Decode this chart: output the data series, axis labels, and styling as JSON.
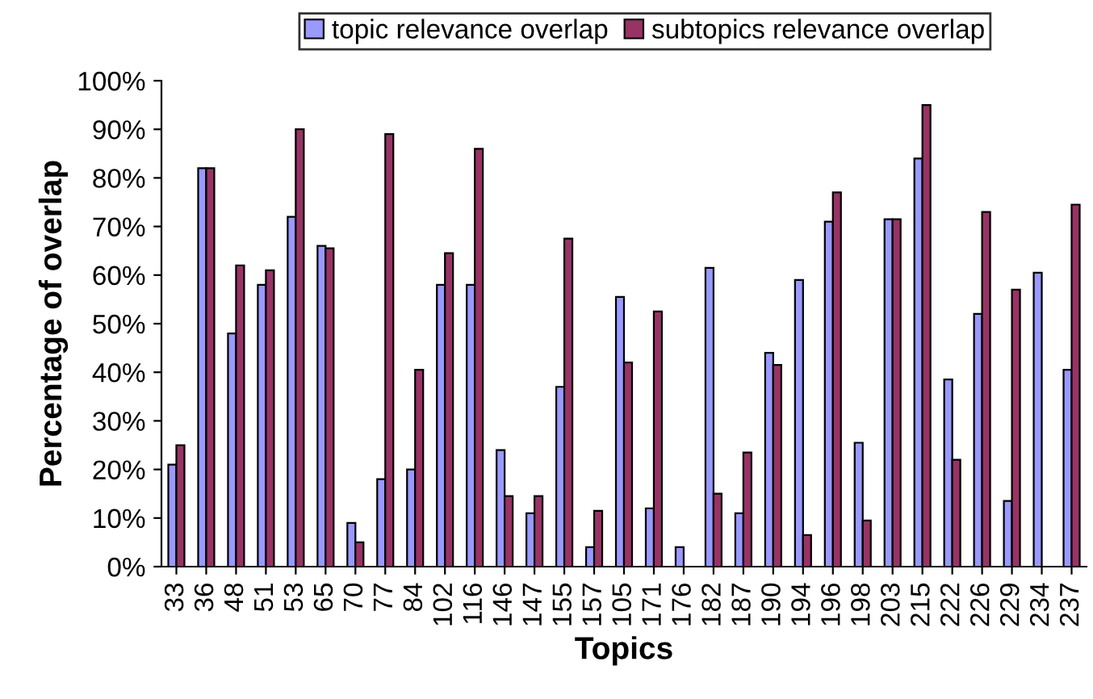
{
  "chart_data": {
    "type": "bar",
    "xlabel": "Topics",
    "ylabel": "Percentage of overlap",
    "categories": [
      "33",
      "36",
      "48",
      "51",
      "53",
      "65",
      "70",
      "77",
      "84",
      "102",
      "116",
      "146",
      "147",
      "155",
      "157",
      "105",
      "171",
      "176",
      "182",
      "187",
      "190",
      "194",
      "196",
      "198",
      "203",
      "215",
      "222",
      "226",
      "229",
      "234",
      "237"
    ],
    "series": [
      {
        "name": "topic relevance overlap",
        "color": "#9999ff",
        "values": [
          21,
          82,
          48,
          58,
          72,
          66,
          9,
          18,
          20,
          58,
          58,
          24,
          11,
          37,
          4,
          55.5,
          12,
          4,
          61.5,
          11,
          44,
          59,
          71,
          25.5,
          71.5,
          84,
          38.5,
          52,
          13.5,
          60.5,
          40.5
        ]
      },
      {
        "name": "subtopics relevance overlap",
        "color": "#993366",
        "values": [
          25,
          82,
          62,
          61,
          90,
          65.5,
          5,
          89,
          40.5,
          64.5,
          86,
          14.5,
          14.5,
          67.5,
          11.5,
          42,
          52.5,
          null,
          15,
          23.5,
          41.5,
          6.5,
          77,
          9.5,
          71.5,
          95,
          22,
          73,
          57,
          null,
          74.5
        ]
      }
    ],
    "ylim": [
      0,
      100
    ],
    "yticks": [
      {
        "value": 0,
        "label": "0%"
      },
      {
        "value": 10,
        "label": "10%"
      },
      {
        "value": 20,
        "label": "20%"
      },
      {
        "value": 30,
        "label": "30%"
      },
      {
        "value": 40,
        "label": "40%"
      },
      {
        "value": 50,
        "label": "50%"
      },
      {
        "value": 60,
        "label": "60%"
      },
      {
        "value": 70,
        "label": "70%"
      },
      {
        "value": 80,
        "label": "80%"
      },
      {
        "value": 90,
        "label": "90%"
      },
      {
        "value": 100,
        "label": "100%"
      }
    ],
    "grid": false,
    "legend": "top"
  }
}
